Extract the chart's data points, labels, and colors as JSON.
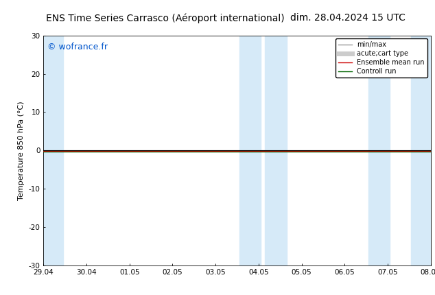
{
  "title_left": "ENS Time Series Carrasco (Aéroport international)",
  "title_right": "dim. 28.04.2024 15 UTC",
  "ylabel": "Temperature 850 hPa (°C)",
  "watermark": "© wofrance.fr",
  "ylim": [
    -30,
    30
  ],
  "yticks": [
    -30,
    -20,
    -10,
    0,
    10,
    20,
    30
  ],
  "xtick_labels": [
    "29.04",
    "30.04",
    "01.05",
    "02.05",
    "03.05",
    "04.05",
    "05.05",
    "06.05",
    "07.05",
    "08.05"
  ],
  "shaded_color": "#d6eaf8",
  "control_run_color": "#006400",
  "ensemble_mean_color": "#cc0000",
  "zero_line_color": "#000000",
  "background_color": "#ffffff",
  "legend_items": [
    {
      "label": "min/max",
      "color": "#999999",
      "lw": 1.0
    },
    {
      "label": "acute;cart type",
      "color": "#cccccc",
      "lw": 5
    },
    {
      "label": "Ensemble mean run",
      "color": "#cc0000",
      "lw": 1.0
    },
    {
      "label": "Controll run",
      "color": "#006400",
      "lw": 1.0
    }
  ],
  "title_fontsize": 10,
  "axis_fontsize": 8,
  "tick_fontsize": 7.5,
  "legend_fontsize": 7,
  "watermark_color": "#0055cc",
  "watermark_fontsize": 9
}
